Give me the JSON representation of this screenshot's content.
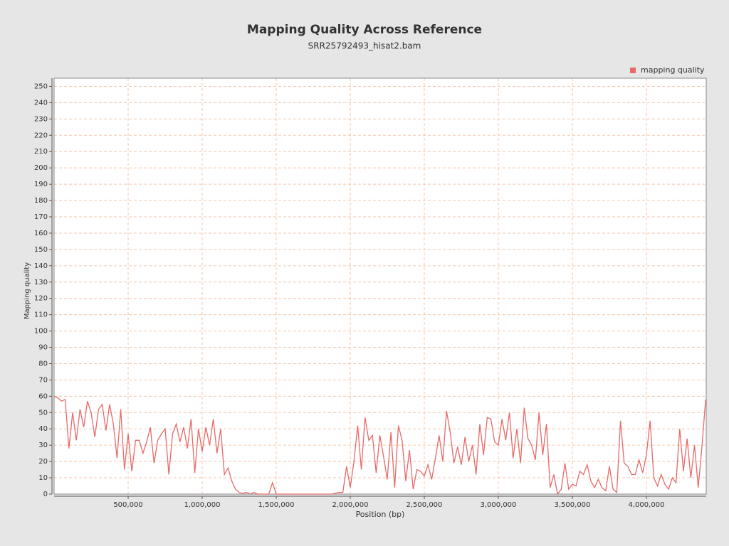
{
  "chart_data": {
    "type": "line",
    "title": "Mapping Quality Across Reference",
    "subtitle": "SRR25792493_hisat2.bam",
    "x_label": "Position (bp)",
    "y_label": "Mapping quality",
    "legend": "top-right",
    "grid": true,
    "xlim": [
      0,
      4404000
    ],
    "ylim": [
      0,
      255
    ],
    "xticks": [
      {
        "value": 500000,
        "label": "500,000"
      },
      {
        "value": 1000000,
        "label": "1,000,000"
      },
      {
        "value": 1500000,
        "label": "1,500,000"
      },
      {
        "value": 2000000,
        "label": "2,000,000"
      },
      {
        "value": 2500000,
        "label": "2,500,000"
      },
      {
        "value": 3000000,
        "label": "3,000,000"
      },
      {
        "value": 3500000,
        "label": "3,500,000"
      },
      {
        "value": 4000000,
        "label": "4,000,000"
      }
    ],
    "yticks": [
      0,
      10,
      20,
      30,
      40,
      50,
      60,
      70,
      80,
      90,
      100,
      110,
      120,
      130,
      140,
      150,
      160,
      170,
      180,
      190,
      200,
      210,
      220,
      230,
      240,
      250
    ],
    "x": [
      0,
      25000,
      50000,
      75000,
      100000,
      125000,
      150000,
      175000,
      200000,
      225000,
      250000,
      275000,
      300000,
      325000,
      350000,
      375000,
      400000,
      425000,
      450000,
      475000,
      500000,
      525000,
      550000,
      575000,
      600000,
      625000,
      650000,
      675000,
      700000,
      725000,
      750000,
      775000,
      800000,
      825000,
      850000,
      875000,
      900000,
      925000,
      950000,
      975000,
      1000000,
      1025000,
      1050000,
      1075000,
      1100000,
      1125000,
      1150000,
      1175000,
      1200000,
      1225000,
      1250000,
      1275000,
      1300000,
      1325000,
      1350000,
      1375000,
      1400000,
      1425000,
      1450000,
      1475000,
      1500000,
      1525000,
      1550000,
      1575000,
      1600000,
      1625000,
      1650000,
      1675000,
      1700000,
      1725000,
      1750000,
      1775000,
      1800000,
      1825000,
      1850000,
      1875000,
      1900000,
      1925000,
      1950000,
      1975000,
      2000000,
      2025000,
      2050000,
      2075000,
      2100000,
      2125000,
      2150000,
      2175000,
      2200000,
      2225000,
      2250000,
      2275000,
      2300000,
      2325000,
      2350000,
      2375000,
      2400000,
      2425000,
      2450000,
      2475000,
      2500000,
      2525000,
      2550000,
      2575000,
      2600000,
      2625000,
      2650000,
      2675000,
      2700000,
      2725000,
      2750000,
      2775000,
      2800000,
      2825000,
      2850000,
      2875000,
      2900000,
      2925000,
      2950000,
      2975000,
      3000000,
      3025000,
      3050000,
      3075000,
      3100000,
      3125000,
      3150000,
      3175000,
      3200000,
      3225000,
      3250000,
      3275000,
      3300000,
      3325000,
      3350000,
      3375000,
      3400000,
      3425000,
      3450000,
      3475000,
      3500000,
      3525000,
      3550000,
      3575000,
      3600000,
      3625000,
      3650000,
      3675000,
      3700000,
      3725000,
      3750000,
      3775000,
      3800000,
      3825000,
      3850000,
      3875000,
      3900000,
      3925000,
      3950000,
      3975000,
      4000000,
      4025000,
      4050000,
      4075000,
      4100000,
      4125000,
      4150000,
      4175000,
      4200000,
      4225000,
      4250000,
      4275000,
      4300000,
      4325000,
      4350000,
      4375000,
      4400000
    ],
    "series": [
      {
        "name": "mapping quality",
        "color": "#e8696a",
        "values": [
          60,
          59,
          57,
          58,
          28,
          50,
          33,
          52,
          41,
          57,
          50,
          35,
          52,
          55,
          39,
          55,
          43,
          22,
          52,
          15,
          37,
          14,
          33,
          33,
          25,
          32,
          41,
          19,
          33,
          37,
          40,
          12,
          37,
          43,
          32,
          41,
          28,
          46,
          13,
          40,
          26,
          41,
          30,
          46,
          25,
          40,
          12,
          16,
          8,
          3,
          1,
          0.5,
          1,
          0,
          1,
          0,
          0,
          0,
          0,
          7,
          0,
          0,
          0,
          0,
          0,
          0,
          0,
          0,
          0,
          0,
          0,
          0,
          0,
          0,
          0,
          0,
          0.5,
          1,
          1,
          17,
          4,
          20,
          42,
          15,
          47,
          33,
          36,
          13,
          36,
          23,
          9,
          38,
          4,
          42,
          33,
          8,
          27,
          3,
          15,
          14,
          11,
          18,
          9,
          22,
          36,
          20,
          51,
          38,
          19,
          29,
          18,
          35,
          20,
          30,
          12,
          43,
          24,
          47,
          46,
          32,
          30,
          46,
          33,
          50,
          22,
          40,
          19,
          53,
          34,
          30,
          21,
          50,
          24,
          43,
          4,
          12,
          0,
          3,
          19,
          3,
          6,
          5,
          14,
          12,
          18,
          8,
          4,
          9,
          4,
          2,
          17,
          3,
          1,
          45,
          19,
          17,
          12,
          12,
          21,
          13,
          24,
          45,
          10,
          5,
          12,
          6,
          3,
          10,
          7,
          40,
          14,
          34,
          10,
          30,
          4,
          29,
          58
        ]
      }
    ]
  }
}
